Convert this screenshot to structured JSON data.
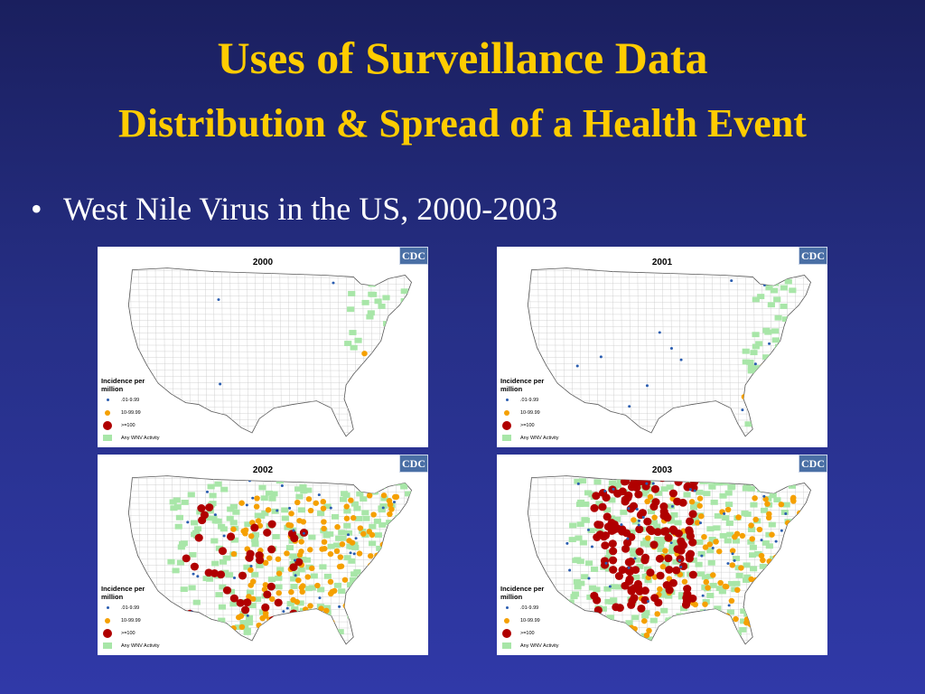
{
  "slide": {
    "title_line1": "Uses of Surveillance Data",
    "title_line2": "Distribution & Spread of a Health Event",
    "bullet": "West Nile Virus in the US, 2000-2003"
  },
  "colors": {
    "title": "#ffcc00",
    "low": "#2a5db0",
    "mid": "#f5a000",
    "high": "#b00000",
    "activity": "#a8e6a8"
  },
  "maps": [
    {
      "year": "2000",
      "badge": "CDC",
      "activity_level": 0.05,
      "mid_level": 0.003,
      "high_level": 0.0
    },
    {
      "year": "2001",
      "badge": "CDC",
      "activity_level": 0.15,
      "mid_level": 0.01,
      "high_level": 0.0
    },
    {
      "year": "2002",
      "badge": "CDC",
      "activity_level": 0.65,
      "mid_level": 0.25,
      "high_level": 0.08
    },
    {
      "year": "2003",
      "badge": "CDC",
      "activity_level": 0.75,
      "mid_level": 0.2,
      "high_level": 0.3
    }
  ],
  "legend": {
    "title": "Incidence per million",
    "items": [
      ".01-9.99",
      "10-99.99",
      ">=100",
      "Any WNV Activity"
    ]
  }
}
